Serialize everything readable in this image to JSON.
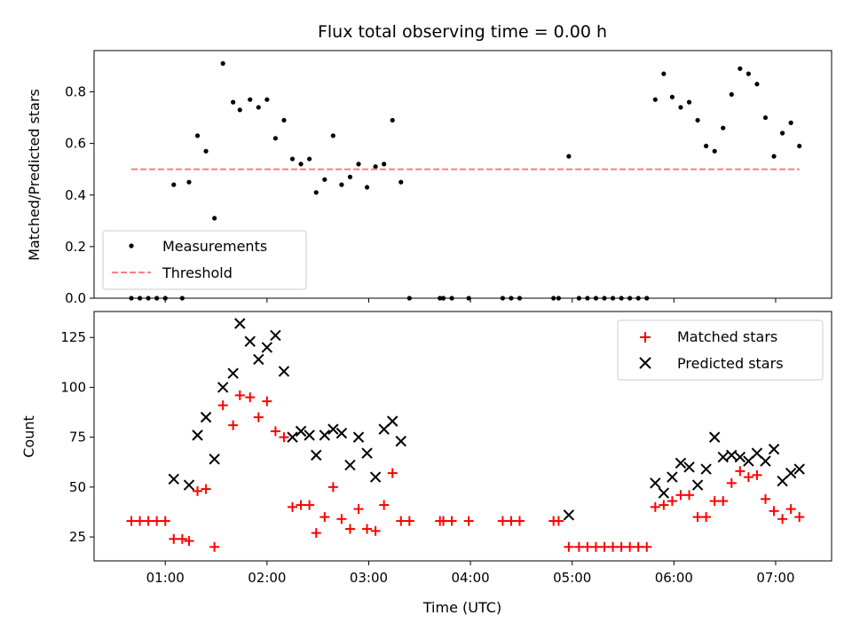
{
  "chart_data": [
    {
      "type": "scatter",
      "title": "Flux total observing time = 0.00 h",
      "xlabel": "",
      "ylabel": "Matched/Predicted stars",
      "xlim": [
        "00:18",
        "07:33"
      ],
      "ylim": [
        0,
        0.96
      ],
      "yticks": [
        0.0,
        0.2,
        0.4,
        0.6,
        0.8
      ],
      "ytick_labels": [
        "0.0",
        "0.2",
        "0.4",
        "0.6",
        "0.8"
      ],
      "xticks": [
        "01:00",
        "02:00",
        "03:00",
        "04:00",
        "05:00",
        "06:00",
        "07:00"
      ],
      "grid": false,
      "legend_position": "lower-left",
      "series": [
        {
          "name": "Measurements",
          "marker": "dot",
          "color": "#000000",
          "points": [
            {
              "x": "00:40",
              "y": 0.0
            },
            {
              "x": "00:45",
              "y": 0.0
            },
            {
              "x": "00:50",
              "y": 0.0
            },
            {
              "x": "00:55",
              "y": 0.0
            },
            {
              "x": "01:00",
              "y": 0.0
            },
            {
              "x": "01:05",
              "y": 0.44
            },
            {
              "x": "01:10",
              "y": 0.0
            },
            {
              "x": "01:14",
              "y": 0.45
            },
            {
              "x": "01:19",
              "y": 0.63
            },
            {
              "x": "01:24",
              "y": 0.57
            },
            {
              "x": "01:29",
              "y": 0.31
            },
            {
              "x": "01:34",
              "y": 0.91
            },
            {
              "x": "01:40",
              "y": 0.76
            },
            {
              "x": "01:44",
              "y": 0.73
            },
            {
              "x": "01:50",
              "y": 0.77
            },
            {
              "x": "01:55",
              "y": 0.74
            },
            {
              "x": "02:00",
              "y": 0.77
            },
            {
              "x": "02:05",
              "y": 0.62
            },
            {
              "x": "02:10",
              "y": 0.69
            },
            {
              "x": "02:15",
              "y": 0.54
            },
            {
              "x": "02:20",
              "y": 0.52
            },
            {
              "x": "02:25",
              "y": 0.54
            },
            {
              "x": "02:29",
              "y": 0.41
            },
            {
              "x": "02:34",
              "y": 0.46
            },
            {
              "x": "02:39",
              "y": 0.63
            },
            {
              "x": "02:44",
              "y": 0.44
            },
            {
              "x": "02:49",
              "y": 0.47
            },
            {
              "x": "02:54",
              "y": 0.52
            },
            {
              "x": "02:59",
              "y": 0.43
            },
            {
              "x": "03:04",
              "y": 0.51
            },
            {
              "x": "03:09",
              "y": 0.52
            },
            {
              "x": "03:14",
              "y": 0.69
            },
            {
              "x": "03:19",
              "y": 0.45
            },
            {
              "x": "03:24",
              "y": 0.0
            },
            {
              "x": "03:42",
              "y": 0.0
            },
            {
              "x": "03:44",
              "y": 0.0
            },
            {
              "x": "03:49",
              "y": 0.0
            },
            {
              "x": "03:59",
              "y": 0.0
            },
            {
              "x": "04:19",
              "y": 0.0
            },
            {
              "x": "04:24",
              "y": 0.0
            },
            {
              "x": "04:29",
              "y": 0.0
            },
            {
              "x": "04:49",
              "y": 0.0
            },
            {
              "x": "04:52",
              "y": 0.0
            },
            {
              "x": "04:58",
              "y": 0.55
            },
            {
              "x": "05:04",
              "y": 0.0
            },
            {
              "x": "05:09",
              "y": 0.0
            },
            {
              "x": "05:14",
              "y": 0.0
            },
            {
              "x": "05:19",
              "y": 0.0
            },
            {
              "x": "05:24",
              "y": 0.0
            },
            {
              "x": "05:29",
              "y": 0.0
            },
            {
              "x": "05:34",
              "y": 0.0
            },
            {
              "x": "05:39",
              "y": 0.0
            },
            {
              "x": "05:44",
              "y": 0.0
            },
            {
              "x": "05:49",
              "y": 0.77
            },
            {
              "x": "05:54",
              "y": 0.87
            },
            {
              "x": "05:59",
              "y": 0.78
            },
            {
              "x": "06:04",
              "y": 0.74
            },
            {
              "x": "06:09",
              "y": 0.76
            },
            {
              "x": "06:14",
              "y": 0.69
            },
            {
              "x": "06:19",
              "y": 0.59
            },
            {
              "x": "06:24",
              "y": 0.57
            },
            {
              "x": "06:29",
              "y": 0.66
            },
            {
              "x": "06:34",
              "y": 0.79
            },
            {
              "x": "06:39",
              "y": 0.89
            },
            {
              "x": "06:44",
              "y": 0.87
            },
            {
              "x": "06:49",
              "y": 0.83
            },
            {
              "x": "06:54",
              "y": 0.7
            },
            {
              "x": "06:59",
              "y": 0.55
            },
            {
              "x": "07:04",
              "y": 0.64
            },
            {
              "x": "07:09",
              "y": 0.68
            },
            {
              "x": "07:14",
              "y": 0.59
            }
          ]
        },
        {
          "name": "Threshold",
          "style": "dashed-line",
          "color": "#ff7f7f",
          "points": [
            {
              "x": "00:40",
              "y": 0.5
            },
            {
              "x": "07:14",
              "y": 0.5
            }
          ]
        }
      ]
    },
    {
      "type": "scatter",
      "title": "",
      "xlabel": "Time (UTC)",
      "ylabel": "Count",
      "xlim": [
        "00:18",
        "07:33"
      ],
      "ylim": [
        13,
        138
      ],
      "yticks": [
        25,
        50,
        75,
        100,
        125
      ],
      "ytick_labels": [
        "25",
        "50",
        "75",
        "100",
        "125"
      ],
      "xticks": [
        "01:00",
        "02:00",
        "03:00",
        "04:00",
        "05:00",
        "06:00",
        "07:00"
      ],
      "grid": false,
      "legend_position": "upper-right",
      "series": [
        {
          "name": "Matched stars",
          "marker": "plus",
          "color": "#ff0000",
          "points": [
            {
              "x": "00:40",
              "y": 33
            },
            {
              "x": "00:45",
              "y": 33
            },
            {
              "x": "00:50",
              "y": 33
            },
            {
              "x": "00:55",
              "y": 33
            },
            {
              "x": "01:00",
              "y": 33
            },
            {
              "x": "01:05",
              "y": 24
            },
            {
              "x": "01:10",
              "y": 24
            },
            {
              "x": "01:14",
              "y": 23
            },
            {
              "x": "01:19",
              "y": 48
            },
            {
              "x": "01:24",
              "y": 49
            },
            {
              "x": "01:29",
              "y": 20
            },
            {
              "x": "01:34",
              "y": 91
            },
            {
              "x": "01:40",
              "y": 81
            },
            {
              "x": "01:44",
              "y": 96
            },
            {
              "x": "01:50",
              "y": 95
            },
            {
              "x": "01:55",
              "y": 85
            },
            {
              "x": "02:00",
              "y": 93
            },
            {
              "x": "02:05",
              "y": 78
            },
            {
              "x": "02:10",
              "y": 75
            },
            {
              "x": "02:15",
              "y": 40
            },
            {
              "x": "02:20",
              "y": 41
            },
            {
              "x": "02:25",
              "y": 41
            },
            {
              "x": "02:29",
              "y": 27
            },
            {
              "x": "02:34",
              "y": 35
            },
            {
              "x": "02:39",
              "y": 50
            },
            {
              "x": "02:44",
              "y": 34
            },
            {
              "x": "02:49",
              "y": 29
            },
            {
              "x": "02:54",
              "y": 39
            },
            {
              "x": "02:59",
              "y": 29
            },
            {
              "x": "03:04",
              "y": 28
            },
            {
              "x": "03:09",
              "y": 41
            },
            {
              "x": "03:14",
              "y": 57
            },
            {
              "x": "03:19",
              "y": 33
            },
            {
              "x": "03:24",
              "y": 33
            },
            {
              "x": "03:42",
              "y": 33
            },
            {
              "x": "03:44",
              "y": 33
            },
            {
              "x": "03:49",
              "y": 33
            },
            {
              "x": "03:59",
              "y": 33
            },
            {
              "x": "04:19",
              "y": 33
            },
            {
              "x": "04:24",
              "y": 33
            },
            {
              "x": "04:29",
              "y": 33
            },
            {
              "x": "04:49",
              "y": 33
            },
            {
              "x": "04:52",
              "y": 33
            },
            {
              "x": "04:58",
              "y": 20
            },
            {
              "x": "05:04",
              "y": 20
            },
            {
              "x": "05:09",
              "y": 20
            },
            {
              "x": "05:14",
              "y": 20
            },
            {
              "x": "05:19",
              "y": 20
            },
            {
              "x": "05:24",
              "y": 20
            },
            {
              "x": "05:29",
              "y": 20
            },
            {
              "x": "05:34",
              "y": 20
            },
            {
              "x": "05:39",
              "y": 20
            },
            {
              "x": "05:44",
              "y": 20
            },
            {
              "x": "05:49",
              "y": 40
            },
            {
              "x": "05:54",
              "y": 41
            },
            {
              "x": "05:59",
              "y": 43
            },
            {
              "x": "06:04",
              "y": 46
            },
            {
              "x": "06:09",
              "y": 46
            },
            {
              "x": "06:14",
              "y": 35
            },
            {
              "x": "06:19",
              "y": 35
            },
            {
              "x": "06:24",
              "y": 43
            },
            {
              "x": "06:29",
              "y": 43
            },
            {
              "x": "06:34",
              "y": 52
            },
            {
              "x": "06:39",
              "y": 58
            },
            {
              "x": "06:44",
              "y": 55
            },
            {
              "x": "06:49",
              "y": 56
            },
            {
              "x": "06:54",
              "y": 44
            },
            {
              "x": "06:59",
              "y": 38
            },
            {
              "x": "07:04",
              "y": 34
            },
            {
              "x": "07:09",
              "y": 39
            },
            {
              "x": "07:14",
              "y": 35
            }
          ]
        },
        {
          "name": "Predicted stars",
          "marker": "x",
          "color": "#000000",
          "points": [
            {
              "x": "01:05",
              "y": 54
            },
            {
              "x": "01:14",
              "y": 51
            },
            {
              "x": "01:19",
              "y": 76
            },
            {
              "x": "01:24",
              "y": 85
            },
            {
              "x": "01:29",
              "y": 64
            },
            {
              "x": "01:34",
              "y": 100
            },
            {
              "x": "01:40",
              "y": 107
            },
            {
              "x": "01:44",
              "y": 132
            },
            {
              "x": "01:50",
              "y": 123
            },
            {
              "x": "01:55",
              "y": 114
            },
            {
              "x": "02:00",
              "y": 120
            },
            {
              "x": "02:05",
              "y": 126
            },
            {
              "x": "02:10",
              "y": 108
            },
            {
              "x": "02:15",
              "y": 75
            },
            {
              "x": "02:20",
              "y": 78
            },
            {
              "x": "02:25",
              "y": 76
            },
            {
              "x": "02:29",
              "y": 66
            },
            {
              "x": "02:34",
              "y": 76
            },
            {
              "x": "02:39",
              "y": 79
            },
            {
              "x": "02:44",
              "y": 77
            },
            {
              "x": "02:49",
              "y": 61
            },
            {
              "x": "02:54",
              "y": 75
            },
            {
              "x": "02:59",
              "y": 67
            },
            {
              "x": "03:04",
              "y": 55
            },
            {
              "x": "03:09",
              "y": 79
            },
            {
              "x": "03:14",
              "y": 83
            },
            {
              "x": "03:19",
              "y": 73
            },
            {
              "x": "04:58",
              "y": 36
            },
            {
              "x": "05:49",
              "y": 52
            },
            {
              "x": "05:54",
              "y": 47
            },
            {
              "x": "05:59",
              "y": 55
            },
            {
              "x": "06:04",
              "y": 62
            },
            {
              "x": "06:09",
              "y": 60
            },
            {
              "x": "06:14",
              "y": 51
            },
            {
              "x": "06:19",
              "y": 59
            },
            {
              "x": "06:24",
              "y": 75
            },
            {
              "x": "06:29",
              "y": 65
            },
            {
              "x": "06:34",
              "y": 66
            },
            {
              "x": "06:39",
              "y": 65
            },
            {
              "x": "06:44",
              "y": 63
            },
            {
              "x": "06:49",
              "y": 67
            },
            {
              "x": "06:54",
              "y": 63
            },
            {
              "x": "06:59",
              "y": 69
            },
            {
              "x": "07:04",
              "y": 53
            },
            {
              "x": "07:09",
              "y": 57
            },
            {
              "x": "07:14",
              "y": 59
            }
          ]
        }
      ]
    }
  ]
}
